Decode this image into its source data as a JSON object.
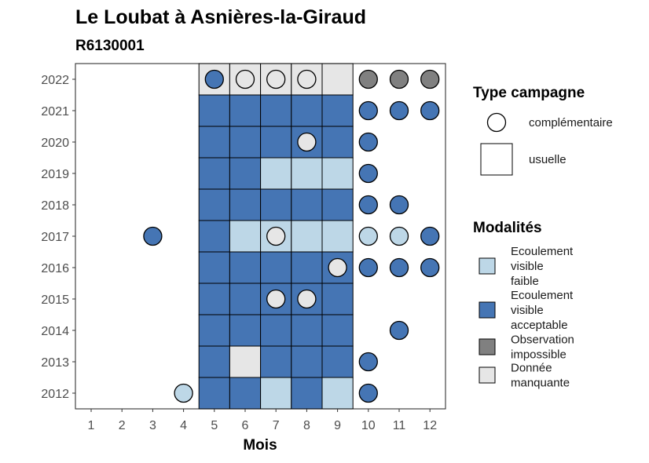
{
  "chart_data": {
    "type": "heatmap",
    "title": "Le Loubat à Asnières-la-Giraud",
    "subtitle": "R6130001",
    "xlabel": "Mois",
    "ylabel": "",
    "x_ticks": [
      "1",
      "2",
      "3",
      "4",
      "5",
      "6",
      "7",
      "8",
      "9",
      "10",
      "11",
      "12"
    ],
    "y_ticks": [
      "2012",
      "2013",
      "2014",
      "2015",
      "2016",
      "2017",
      "2018",
      "2019",
      "2020",
      "2021",
      "2022"
    ],
    "legend_type": {
      "title": "Type campagne",
      "entries": [
        {
          "key": "complementaire",
          "label": "complémentaire",
          "shape": "circle"
        },
        {
          "key": "usuelle",
          "label": "usuelle",
          "shape": "square"
        }
      ]
    },
    "legend_modalites": {
      "title": "Modalités",
      "entries": [
        {
          "key": "faible",
          "label": [
            "Ecoulement",
            "visible",
            "faible"
          ],
          "color": "#bdd7e7"
        },
        {
          "key": "acceptable",
          "label": [
            "Ecoulement",
            "visible",
            "acceptable"
          ],
          "color": "#4575b4"
        },
        {
          "key": "impossible",
          "label": [
            "Observation",
            "impossible"
          ],
          "color": "#808080"
        },
        {
          "key": "manquante",
          "label": [
            "Donnée",
            "manquante"
          ],
          "color": "#e6e6e6"
        }
      ]
    },
    "usuelle_months": [
      5,
      6,
      7,
      8,
      9
    ],
    "observations": [
      {
        "year": 2022,
        "month": 5,
        "type": "usuelle",
        "modalite": "manquante"
      },
      {
        "year": 2022,
        "month": 6,
        "type": "usuelle",
        "modalite": "manquante"
      },
      {
        "year": 2022,
        "month": 7,
        "type": "usuelle",
        "modalite": "manquante"
      },
      {
        "year": 2022,
        "month": 8,
        "type": "usuelle",
        "modalite": "manquante"
      },
      {
        "year": 2022,
        "month": 9,
        "type": "usuelle",
        "modalite": "manquante"
      },
      {
        "year": 2022,
        "month": 5,
        "type": "complementaire",
        "modalite": "acceptable"
      },
      {
        "year": 2022,
        "month": 6,
        "type": "complementaire",
        "modalite": "manquante"
      },
      {
        "year": 2022,
        "month": 7,
        "type": "complementaire",
        "modalite": "manquante"
      },
      {
        "year": 2022,
        "month": 8,
        "type": "complementaire",
        "modalite": "manquante"
      },
      {
        "year": 2022,
        "month": 10,
        "type": "complementaire",
        "modalite": "impossible"
      },
      {
        "year": 2022,
        "month": 11,
        "type": "complementaire",
        "modalite": "impossible"
      },
      {
        "year": 2022,
        "month": 12,
        "type": "complementaire",
        "modalite": "impossible"
      },
      {
        "year": 2021,
        "month": 5,
        "type": "usuelle",
        "modalite": "acceptable"
      },
      {
        "year": 2021,
        "month": 6,
        "type": "usuelle",
        "modalite": "acceptable"
      },
      {
        "year": 2021,
        "month": 7,
        "type": "usuelle",
        "modalite": "acceptable"
      },
      {
        "year": 2021,
        "month": 8,
        "type": "usuelle",
        "modalite": "acceptable"
      },
      {
        "year": 2021,
        "month": 9,
        "type": "usuelle",
        "modalite": "acceptable"
      },
      {
        "year": 2021,
        "month": 10,
        "type": "complementaire",
        "modalite": "acceptable"
      },
      {
        "year": 2021,
        "month": 11,
        "type": "complementaire",
        "modalite": "acceptable"
      },
      {
        "year": 2021,
        "month": 12,
        "type": "complementaire",
        "modalite": "acceptable"
      },
      {
        "year": 2020,
        "month": 5,
        "type": "usuelle",
        "modalite": "acceptable"
      },
      {
        "year": 2020,
        "month": 6,
        "type": "usuelle",
        "modalite": "acceptable"
      },
      {
        "year": 2020,
        "month": 7,
        "type": "usuelle",
        "modalite": "acceptable"
      },
      {
        "year": 2020,
        "month": 8,
        "type": "usuelle",
        "modalite": "acceptable"
      },
      {
        "year": 2020,
        "month": 9,
        "type": "usuelle",
        "modalite": "acceptable"
      },
      {
        "year": 2020,
        "month": 8,
        "type": "complementaire",
        "modalite": "manquante"
      },
      {
        "year": 2020,
        "month": 10,
        "type": "complementaire",
        "modalite": "acceptable"
      },
      {
        "year": 2019,
        "month": 5,
        "type": "usuelle",
        "modalite": "acceptable"
      },
      {
        "year": 2019,
        "month": 6,
        "type": "usuelle",
        "modalite": "acceptable"
      },
      {
        "year": 2019,
        "month": 7,
        "type": "usuelle",
        "modalite": "faible"
      },
      {
        "year": 2019,
        "month": 8,
        "type": "usuelle",
        "modalite": "faible"
      },
      {
        "year": 2019,
        "month": 9,
        "type": "usuelle",
        "modalite": "faible"
      },
      {
        "year": 2019,
        "month": 10,
        "type": "complementaire",
        "modalite": "acceptable"
      },
      {
        "year": 2018,
        "month": 5,
        "type": "usuelle",
        "modalite": "acceptable"
      },
      {
        "year": 2018,
        "month": 6,
        "type": "usuelle",
        "modalite": "acceptable"
      },
      {
        "year": 2018,
        "month": 7,
        "type": "usuelle",
        "modalite": "acceptable"
      },
      {
        "year": 2018,
        "month": 8,
        "type": "usuelle",
        "modalite": "acceptable"
      },
      {
        "year": 2018,
        "month": 9,
        "type": "usuelle",
        "modalite": "acceptable"
      },
      {
        "year": 2018,
        "month": 10,
        "type": "complementaire",
        "modalite": "acceptable"
      },
      {
        "year": 2018,
        "month": 11,
        "type": "complementaire",
        "modalite": "acceptable"
      },
      {
        "year": 2017,
        "month": 5,
        "type": "usuelle",
        "modalite": "acceptable"
      },
      {
        "year": 2017,
        "month": 6,
        "type": "usuelle",
        "modalite": "faible"
      },
      {
        "year": 2017,
        "month": 7,
        "type": "usuelle",
        "modalite": "faible"
      },
      {
        "year": 2017,
        "month": 8,
        "type": "usuelle",
        "modalite": "faible"
      },
      {
        "year": 2017,
        "month": 9,
        "type": "usuelle",
        "modalite": "faible"
      },
      {
        "year": 2017,
        "month": 3,
        "type": "complementaire",
        "modalite": "acceptable"
      },
      {
        "year": 2017,
        "month": 7,
        "type": "complementaire",
        "modalite": "manquante"
      },
      {
        "year": 2017,
        "month": 10,
        "type": "complementaire",
        "modalite": "faible"
      },
      {
        "year": 2017,
        "month": 11,
        "type": "complementaire",
        "modalite": "faible"
      },
      {
        "year": 2017,
        "month": 12,
        "type": "complementaire",
        "modalite": "acceptable"
      },
      {
        "year": 2016,
        "month": 5,
        "type": "usuelle",
        "modalite": "acceptable"
      },
      {
        "year": 2016,
        "month": 6,
        "type": "usuelle",
        "modalite": "acceptable"
      },
      {
        "year": 2016,
        "month": 7,
        "type": "usuelle",
        "modalite": "acceptable"
      },
      {
        "year": 2016,
        "month": 8,
        "type": "usuelle",
        "modalite": "acceptable"
      },
      {
        "year": 2016,
        "month": 9,
        "type": "usuelle",
        "modalite": "acceptable"
      },
      {
        "year": 2016,
        "month": 9,
        "type": "complementaire",
        "modalite": "manquante"
      },
      {
        "year": 2016,
        "month": 10,
        "type": "complementaire",
        "modalite": "acceptable"
      },
      {
        "year": 2016,
        "month": 11,
        "type": "complementaire",
        "modalite": "acceptable"
      },
      {
        "year": 2016,
        "month": 12,
        "type": "complementaire",
        "modalite": "acceptable"
      },
      {
        "year": 2015,
        "month": 5,
        "type": "usuelle",
        "modalite": "acceptable"
      },
      {
        "year": 2015,
        "month": 6,
        "type": "usuelle",
        "modalite": "acceptable"
      },
      {
        "year": 2015,
        "month": 7,
        "type": "usuelle",
        "modalite": "acceptable"
      },
      {
        "year": 2015,
        "month": 8,
        "type": "usuelle",
        "modalite": "acceptable"
      },
      {
        "year": 2015,
        "month": 9,
        "type": "usuelle",
        "modalite": "acceptable"
      },
      {
        "year": 2015,
        "month": 7,
        "type": "complementaire",
        "modalite": "manquante"
      },
      {
        "year": 2015,
        "month": 8,
        "type": "complementaire",
        "modalite": "manquante"
      },
      {
        "year": 2014,
        "month": 5,
        "type": "usuelle",
        "modalite": "acceptable"
      },
      {
        "year": 2014,
        "month": 6,
        "type": "usuelle",
        "modalite": "acceptable"
      },
      {
        "year": 2014,
        "month": 7,
        "type": "usuelle",
        "modalite": "acceptable"
      },
      {
        "year": 2014,
        "month": 8,
        "type": "usuelle",
        "modalite": "acceptable"
      },
      {
        "year": 2014,
        "month": 9,
        "type": "usuelle",
        "modalite": "acceptable"
      },
      {
        "year": 2014,
        "month": 11,
        "type": "complementaire",
        "modalite": "acceptable"
      },
      {
        "year": 2013,
        "month": 5,
        "type": "usuelle",
        "modalite": "acceptable"
      },
      {
        "year": 2013,
        "month": 6,
        "type": "usuelle",
        "modalite": "manquante"
      },
      {
        "year": 2013,
        "month": 7,
        "type": "usuelle",
        "modalite": "acceptable"
      },
      {
        "year": 2013,
        "month": 8,
        "type": "usuelle",
        "modalite": "acceptable"
      },
      {
        "year": 2013,
        "month": 9,
        "type": "usuelle",
        "modalite": "acceptable"
      },
      {
        "year": 2013,
        "month": 10,
        "type": "complementaire",
        "modalite": "acceptable"
      },
      {
        "year": 2012,
        "month": 5,
        "type": "usuelle",
        "modalite": "acceptable"
      },
      {
        "year": 2012,
        "month": 6,
        "type": "usuelle",
        "modalite": "acceptable"
      },
      {
        "year": 2012,
        "month": 7,
        "type": "usuelle",
        "modalite": "faible"
      },
      {
        "year": 2012,
        "month": 8,
        "type": "usuelle",
        "modalite": "acceptable"
      },
      {
        "year": 2012,
        "month": 9,
        "type": "usuelle",
        "modalite": "faible"
      },
      {
        "year": 2012,
        "month": 4,
        "type": "complementaire",
        "modalite": "faible"
      },
      {
        "year": 2012,
        "month": 10,
        "type": "complementaire",
        "modalite": "acceptable"
      }
    ],
    "grid": false,
    "legend_position": "right"
  }
}
